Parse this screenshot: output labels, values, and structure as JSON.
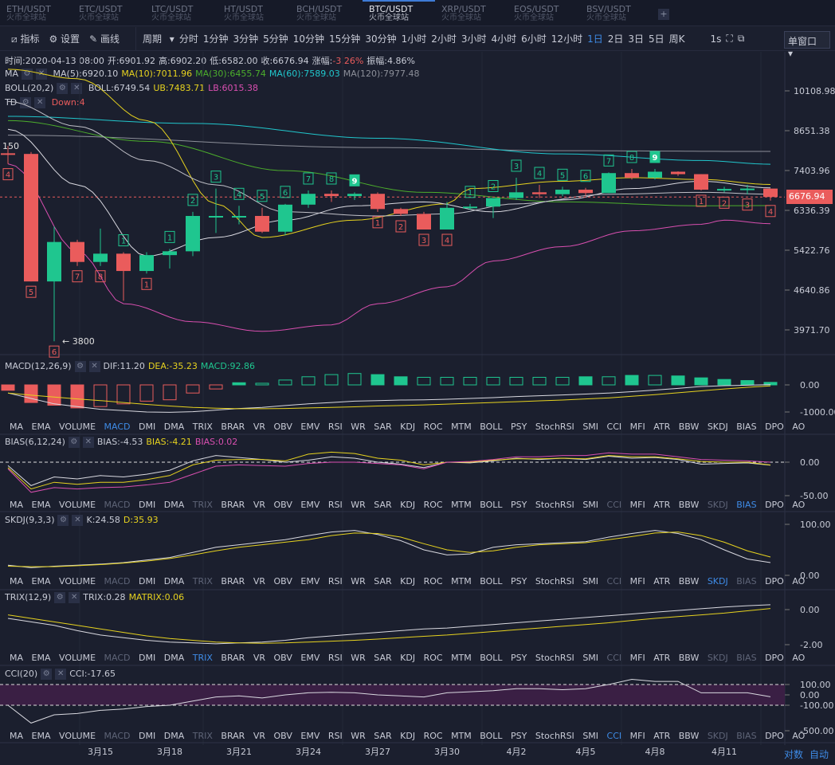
{
  "tabs": [
    {
      "pair": "ETH/USDT",
      "ex": "火币全球站"
    },
    {
      "pair": "ETC/USDT",
      "ex": "火币全球站"
    },
    {
      "pair": "LTC/USDT",
      "ex": "火币全球站"
    },
    {
      "pair": "HT/USDT",
      "ex": "火币全球站"
    },
    {
      "pair": "BCH/USDT",
      "ex": "火币全球站"
    },
    {
      "pair": "BTC/USDT",
      "ex": "火币全球站",
      "active": true
    },
    {
      "pair": "XRP/USDT",
      "ex": "火币全球站"
    },
    {
      "pair": "EOS/USDT",
      "ex": "火币全球站"
    },
    {
      "pair": "BSV/USDT",
      "ex": "火币全球站"
    }
  ],
  "add_tab": "+",
  "toolbar": {
    "indicators": "指标",
    "settings": "设置",
    "draw": "画线",
    "period": "周期",
    "periods": [
      "分时",
      "1分钟",
      "3分钟",
      "5分钟",
      "10分钟",
      "15分钟",
      "30分钟",
      "1小时",
      "2小时",
      "3小时",
      "4小时",
      "6小时",
      "12小时",
      "1日",
      "2日",
      "3日",
      "5日",
      "周K"
    ],
    "active_period": "1日",
    "speed": "1s",
    "window": "单窗口"
  },
  "ohlc_info": {
    "time": "时间:2020-04-13 08:00",
    "open": "开:6901.92",
    "high": "高:6902.20",
    "low": "低:6582.00",
    "close": "收:6676.94",
    "change_label": "涨幅:",
    "change": "-3.26%",
    "amp": "振幅:4.86%"
  },
  "ma": {
    "name": "MA",
    "ma5": "MA(5):6920.10",
    "ma10": "MA(10):7011.96",
    "ma30": "MA(30):6455.74",
    "ma60": "MA(60):7589.03",
    "ma120": "MA(120):7977.48"
  },
  "boll": {
    "name": "BOLL(20,2)",
    "mid": "BOLL:6749.54",
    "ub": "UB:7483.71",
    "lb": "LB:6015.38"
  },
  "td": {
    "name": "TD",
    "val": "Down:4"
  },
  "colors": {
    "up": "#1fc68f",
    "down": "#ea5c5c",
    "ma5": "#d9d9e0",
    "ma10": "#e6d21f",
    "ma30": "#4cae2c",
    "ma60": "#21c6cc",
    "ma120": "#8c8f99",
    "lb": "#d94fb0"
  },
  "price_axis": [
    "10108.98",
    "8651.38",
    "7403.96",
    "6336.39",
    "5422.76",
    "4640.86",
    "3971.70"
  ],
  "last_price": "6676.94",
  "low_marker": "← 3800",
  "high_marker": "150",
  "chart_data": {
    "type": "candlestick",
    "dates": [
      "3/11",
      "3/12",
      "3/13",
      "3/14",
      "3/15",
      "3/16",
      "3/17",
      "3/18",
      "3/19",
      "3/20",
      "3/21",
      "3/22",
      "3/23",
      "3/24",
      "3/25",
      "3/26",
      "3/27",
      "3/28",
      "3/29",
      "3/30",
      "3/31",
      "4/1",
      "4/2",
      "4/3",
      "4/4",
      "4/5",
      "4/6",
      "4/7",
      "4/8",
      "4/9",
      "4/10",
      "4/11",
      "4/12",
      "4/13"
    ],
    "date_ticks": [
      {
        "i": 4,
        "label": "3月15"
      },
      {
        "i": 7,
        "label": "3月18"
      },
      {
        "i": 10,
        "label": "3月21"
      },
      {
        "i": 13,
        "label": "3月24"
      },
      {
        "i": 16,
        "label": "3月27"
      },
      {
        "i": 19,
        "label": "3月30"
      },
      {
        "i": 22,
        "label": "4月2"
      },
      {
        "i": 25,
        "label": "4月5"
      },
      {
        "i": 28,
        "label": "4月8"
      },
      {
        "i": 31,
        "label": "4月11"
      }
    ],
    "ohlc": [
      [
        7920,
        8150,
        7600,
        7900
      ],
      [
        7900,
        7960,
        4800,
        4800
      ],
      [
        4800,
        5950,
        3800,
        5600
      ],
      [
        5600,
        5650,
        5100,
        5180
      ],
      [
        5180,
        5900,
        5100,
        5350
      ],
      [
        5350,
        5380,
        4450,
        5000
      ],
      [
        5000,
        5380,
        4950,
        5320
      ],
      [
        5320,
        5450,
        5050,
        5400
      ],
      [
        5400,
        6300,
        5300,
        6200
      ],
      [
        6200,
        6900,
        5800,
        6200
      ],
      [
        6200,
        6450,
        6000,
        6200
      ],
      [
        6200,
        6400,
        5800,
        5830
      ],
      [
        5830,
        6500,
        5750,
        6480
      ],
      [
        6480,
        6850,
        6400,
        6760
      ],
      [
        6760,
        6850,
        6550,
        6700
      ],
      [
        6700,
        6800,
        6600,
        6760
      ],
      [
        6760,
        6800,
        6300,
        6370
      ],
      [
        6370,
        6400,
        6200,
        6250
      ],
      [
        6250,
        6300,
        5880,
        5880
      ],
      [
        5880,
        6550,
        5880,
        6400
      ],
      [
        6400,
        6500,
        6350,
        6430
      ],
      [
        6430,
        6650,
        6150,
        6650
      ],
      [
        6650,
        7200,
        6600,
        6800
      ],
      [
        6800,
        7000,
        6650,
        6750
      ],
      [
        6750,
        6950,
        6700,
        6870
      ],
      [
        6870,
        6920,
        6700,
        6780
      ],
      [
        6780,
        7350,
        6780,
        7330
      ],
      [
        7330,
        7450,
        7150,
        7200
      ],
      [
        7200,
        7450,
        7150,
        7370
      ],
      [
        7370,
        7380,
        7250,
        7300
      ],
      [
        7300,
        7300,
        6850,
        6870
      ],
      [
        6870,
        6950,
        6800,
        6890
      ],
      [
        6890,
        7000,
        6750,
        6900
      ],
      [
        6900,
        6902,
        6582,
        6677
      ]
    ],
    "td_marks": [
      {
        "i": 0,
        "n": "4",
        "up": false
      },
      {
        "i": 1,
        "n": "5",
        "up": false
      },
      {
        "i": 2,
        "n": "6",
        "up": false
      },
      {
        "i": 3,
        "n": "7",
        "up": false
      },
      {
        "i": 4,
        "n": "8",
        "up": false
      },
      {
        "i": 5,
        "n": "1",
        "up": true
      },
      {
        "i": 6,
        "n": "1",
        "up": false
      },
      {
        "i": 7,
        "n": "1",
        "up": true
      },
      {
        "i": 8,
        "n": "2",
        "up": true
      },
      {
        "i": 9,
        "n": "3",
        "up": true
      },
      {
        "i": 10,
        "n": "4",
        "up": true
      },
      {
        "i": 11,
        "n": "5",
        "up": true
      },
      {
        "i": 12,
        "n": "6",
        "up": true
      },
      {
        "i": 13,
        "n": "7",
        "up": true
      },
      {
        "i": 14,
        "n": "8",
        "up": true
      },
      {
        "i": 15,
        "n": "9",
        "up": true
      },
      {
        "i": 16,
        "n": "1",
        "up": false
      },
      {
        "i": 17,
        "n": "2",
        "up": false
      },
      {
        "i": 18,
        "n": "3",
        "up": false
      },
      {
        "i": 19,
        "n": "4",
        "up": false
      },
      {
        "i": 20,
        "n": "1",
        "up": true
      },
      {
        "i": 21,
        "n": "2",
        "up": true
      },
      {
        "i": 22,
        "n": "3",
        "up": true
      },
      {
        "i": 23,
        "n": "4",
        "up": true
      },
      {
        "i": 24,
        "n": "5",
        "up": true
      },
      {
        "i": 25,
        "n": "6",
        "up": true
      },
      {
        "i": 26,
        "n": "7",
        "up": true
      },
      {
        "i": 27,
        "n": "8",
        "up": true
      },
      {
        "i": 28,
        "n": "9",
        "up": true
      },
      {
        "i": 30,
        "n": "1",
        "up": false
      },
      {
        "i": 31,
        "n": "2",
        "up": false
      },
      {
        "i": 32,
        "n": "3",
        "up": false
      },
      {
        "i": 33,
        "n": "4",
        "up": false
      }
    ],
    "lines": {
      "ma5": [
        [
          0,
          8700
        ],
        [
          3,
          7000
        ],
        [
          6,
          5300
        ],
        [
          9,
          5700
        ],
        [
          12,
          6100
        ],
        [
          15,
          6450
        ],
        [
          18,
          6550
        ],
        [
          21,
          6300
        ],
        [
          24,
          6600
        ],
        [
          27,
          6900
        ],
        [
          30,
          7100
        ],
        [
          33,
          6920
        ]
      ],
      "ma10": [
        [
          0,
          11000
        ],
        [
          3,
          10600
        ],
        [
          6,
          9000
        ],
        [
          9,
          6500
        ],
        [
          11,
          5700
        ],
        [
          15,
          6100
        ],
        [
          19,
          6500
        ],
        [
          20,
          6900
        ],
        [
          24,
          7100
        ],
        [
          27,
          7200
        ],
        [
          30,
          7150
        ],
        [
          33,
          7012
        ]
      ],
      "ma30": [
        [
          0,
          9000
        ],
        [
          6,
          8300
        ],
        [
          12,
          7400
        ],
        [
          18,
          6800
        ],
        [
          24,
          6550
        ],
        [
          30,
          6450
        ],
        [
          33,
          6456
        ]
      ],
      "ma60": [
        [
          0,
          9150
        ],
        [
          8,
          8900
        ],
        [
          16,
          8400
        ],
        [
          24,
          7900
        ],
        [
          30,
          7700
        ],
        [
          33,
          7589
        ]
      ],
      "ma120": [
        [
          0,
          8500
        ],
        [
          16,
          8100
        ],
        [
          24,
          8000
        ],
        [
          33,
          7977
        ]
      ],
      "boll_mid": [
        [
          0,
          9700
        ],
        [
          3,
          8800
        ],
        [
          6,
          7700
        ],
        [
          9,
          7000
        ],
        [
          12,
          6300
        ],
        [
          16,
          6200
        ],
        [
          19,
          6250
        ],
        [
          22,
          6500
        ],
        [
          26,
          6750
        ],
        [
          30,
          6800
        ],
        [
          33,
          6750
        ]
      ],
      "boll_lb": [
        [
          0,
          7600
        ],
        [
          3,
          5400
        ],
        [
          5,
          4400
        ],
        [
          8,
          4100
        ],
        [
          11,
          3950
        ],
        [
          14,
          4050
        ],
        [
          16,
          4400
        ],
        [
          19,
          4700
        ],
        [
          21,
          5200
        ],
        [
          24,
          5500
        ],
        [
          27,
          5850
        ],
        [
          30,
          6000
        ],
        [
          31,
          6100
        ],
        [
          33,
          6015
        ]
      ]
    },
    "macd": {
      "label": "MACD(12,26,9)",
      "dif": "DIF:11.20",
      "dea": "DEA:-35.23",
      "val": "MACD:92.86",
      "axis": [
        "0.00",
        "-1000.00"
      ],
      "hist": [
        -200,
        -650,
        -750,
        -850,
        -800,
        -700,
        -600,
        -550,
        -300,
        -150,
        80,
        60,
        180,
        300,
        380,
        420,
        380,
        300,
        280,
        280,
        280,
        280,
        280,
        280,
        280,
        300,
        300,
        350,
        350,
        330,
        260,
        200,
        160,
        93
      ],
      "filled": [
        1,
        1,
        1,
        1,
        0,
        0,
        0,
        0,
        0,
        0,
        1,
        0,
        0,
        0,
        0,
        0,
        1,
        1,
        0,
        0,
        0,
        0,
        0,
        0,
        0,
        1,
        0,
        1,
        0,
        1,
        1,
        1,
        1,
        1
      ],
      "dif_line": [
        -300,
        -500,
        -700,
        -800,
        -900,
        -950,
        -1000,
        -1010,
        -990,
        -930,
        -870,
        -830,
        -760,
        -700,
        -650,
        -600,
        -580,
        -560,
        -550,
        -530,
        -500,
        -470,
        -430,
        -400,
        -370,
        -340,
        -300,
        -250,
        -190,
        -130,
        -60,
        -30,
        -10,
        11
      ],
      "dea_line": [
        -300,
        -380,
        -450,
        -520,
        -580,
        -650,
        -720,
        -780,
        -830,
        -860,
        -880,
        -880,
        -870,
        -850,
        -830,
        -810,
        -780,
        -760,
        -740,
        -710,
        -680,
        -650,
        -620,
        -590,
        -560,
        -520,
        -480,
        -420,
        -360,
        -290,
        -220,
        -150,
        -90,
        -35
      ]
    },
    "bias": {
      "label": "BIAS(6,12,24)",
      "b1": "BIAS:-4.53",
      "b2": "BIAS:-4.21",
      "b3": "BIAS:0.02",
      "axis": [
        "0.00",
        "-50.00"
      ],
      "l1": [
        -5,
        -35,
        -22,
        -25,
        -20,
        -22,
        -18,
        -12,
        2,
        10,
        7,
        4,
        0,
        3,
        8,
        6,
        0,
        -3,
        -8,
        0,
        -1,
        2,
        6,
        4,
        6,
        4,
        9,
        6,
        7,
        4,
        -3,
        -2,
        -1,
        -4.5
      ],
      "l2": [
        -8,
        -40,
        -30,
        -33,
        -30,
        -30,
        -26,
        -20,
        -4,
        3,
        4,
        4,
        2,
        12,
        15,
        13,
        6,
        3,
        -4,
        0,
        0,
        3,
        5,
        5,
        6,
        5,
        10,
        8,
        8,
        5,
        1,
        0,
        0,
        -4.2
      ],
      "l3": [
        -10,
        -45,
        -38,
        -40,
        -38,
        -37,
        -34,
        -30,
        -18,
        -6,
        -4,
        -5,
        -6,
        -2,
        0,
        0,
        -2,
        -4,
        -10,
        0,
        1,
        4,
        8,
        8,
        10,
        10,
        14,
        12,
        12,
        8,
        4,
        3,
        2,
        0
      ]
    },
    "skdj": {
      "label": "SKDJ(9,3,3)",
      "k": "K:24.58",
      "d": "D:35.93",
      "axis": [
        "100.00",
        "0.00"
      ],
      "k_line": [
        20,
        15,
        18,
        20,
        22,
        25,
        30,
        35,
        45,
        55,
        60,
        65,
        70,
        78,
        85,
        88,
        80,
        68,
        50,
        40,
        42,
        55,
        60,
        62,
        64,
        66,
        75,
        82,
        88,
        82,
        70,
        50,
        32,
        25
      ],
      "d_line": [
        18,
        17,
        17,
        19,
        21,
        24,
        28,
        33,
        40,
        48,
        55,
        60,
        65,
        70,
        78,
        83,
        82,
        75,
        62,
        50,
        45,
        48,
        55,
        60,
        62,
        64,
        70,
        76,
        83,
        85,
        78,
        65,
        48,
        36
      ]
    },
    "trix": {
      "label": "TRIX(12,9)",
      "trix": "TRIX:0.28",
      "matrix": "MATRIX:0.06",
      "axis": [
        "0.00",
        "-2.00"
      ],
      "t_line": [
        -0.5,
        -0.7,
        -0.9,
        -1.2,
        -1.45,
        -1.6,
        -1.75,
        -1.85,
        -1.9,
        -1.95,
        -1.9,
        -1.85,
        -1.75,
        -1.6,
        -1.5,
        -1.4,
        -1.3,
        -1.2,
        -1.1,
        -1.05,
        -0.95,
        -0.85,
        -0.75,
        -0.65,
        -0.55,
        -0.45,
        -0.35,
        -0.25,
        -0.15,
        -0.05,
        0.05,
        0.15,
        0.22,
        0.28
      ],
      "m_line": [
        -0.3,
        -0.5,
        -0.7,
        -0.9,
        -1.1,
        -1.3,
        -1.5,
        -1.65,
        -1.75,
        -1.85,
        -1.9,
        -1.92,
        -1.9,
        -1.85,
        -1.8,
        -1.75,
        -1.68,
        -1.6,
        -1.52,
        -1.45,
        -1.35,
        -1.25,
        -1.15,
        -1.05,
        -0.95,
        -0.85,
        -0.75,
        -0.62,
        -0.5,
        -0.4,
        -0.3,
        -0.2,
        -0.07,
        0.06
      ]
    },
    "cci": {
      "label": "CCI(20)",
      "cci": "CCI:-17.65",
      "axis": [
        "100.00",
        "0.00",
        "-100.00",
        "-500.00"
      ],
      "c_line": [
        -100,
        -380,
        -250,
        -230,
        -180,
        -160,
        -120,
        -100,
        -60,
        -20,
        -10,
        -30,
        0,
        20,
        25,
        20,
        0,
        -10,
        -20,
        20,
        30,
        40,
        60,
        60,
        50,
        60,
        100,
        150,
        130,
        130,
        20,
        20,
        20,
        -18
      ]
    }
  },
  "indicator_tabs": [
    "MA",
    "EMA",
    "VOLUME",
    "MACD",
    "DMI",
    "DMA",
    "TRIX",
    "BRAR",
    "VR",
    "OBV",
    "EMV",
    "RSI",
    "WR",
    "SAR",
    "KDJ",
    "ROC",
    "MTM",
    "BOLL",
    "PSY",
    "StochRSI",
    "SMI",
    "CCI",
    "MFI",
    "ATR",
    "BBW",
    "SKDJ",
    "BIAS",
    "DPO",
    "AO"
  ],
  "bottom": {
    "log": "对数",
    "auto": "自动"
  }
}
